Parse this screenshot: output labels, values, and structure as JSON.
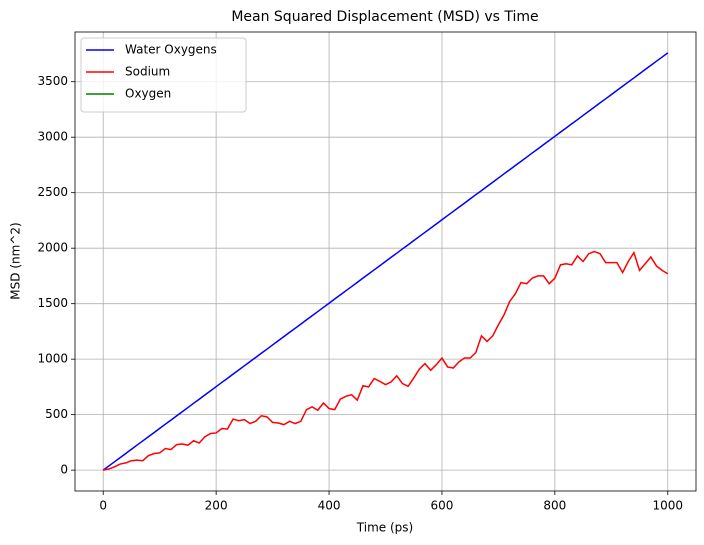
{
  "chart_data": {
    "type": "line",
    "title": "Mean Squared Displacement (MSD) vs Time",
    "x_label": "Time (ps)",
    "y_label": "MSD (nm^2)",
    "x": [
      0,
      10,
      20,
      30,
      40,
      50,
      60,
      70,
      80,
      90,
      100,
      110,
      120,
      130,
      140,
      150,
      160,
      170,
      180,
      190,
      200,
      210,
      220,
      230,
      240,
      250,
      260,
      270,
      280,
      290,
      300,
      310,
      320,
      330,
      340,
      350,
      360,
      370,
      380,
      390,
      400,
      410,
      420,
      430,
      440,
      450,
      460,
      470,
      480,
      490,
      500,
      510,
      520,
      530,
      540,
      550,
      560,
      570,
      580,
      590,
      600,
      610,
      620,
      630,
      640,
      650,
      660,
      670,
      680,
      690,
      700,
      710,
      720,
      730,
      740,
      750,
      760,
      770,
      780,
      790,
      800,
      810,
      820,
      830,
      840,
      850,
      860,
      870,
      880,
      890,
      900,
      910,
      920,
      930,
      940,
      950,
      960,
      970,
      980,
      990,
      1000
    ],
    "series": [
      {
        "name": "Water Oxygens",
        "color": "#0000ff",
        "values": [
          0,
          38,
          75,
          113,
          150,
          188,
          226,
          263,
          301,
          338,
          376,
          414,
          451,
          489,
          526,
          564,
          602,
          639,
          677,
          714,
          752,
          790,
          827,
          865,
          902,
          940,
          978,
          1015,
          1053,
          1090,
          1128,
          1166,
          1203,
          1241,
          1278,
          1316,
          1354,
          1391,
          1429,
          1466,
          1504,
          1542,
          1579,
          1617,
          1654,
          1692,
          1730,
          1767,
          1805,
          1842,
          1880,
          1918,
          1955,
          1993,
          2030,
          2068,
          2106,
          2143,
          2181,
          2218,
          2256,
          2294,
          2331,
          2369,
          2406,
          2444,
          2482,
          2519,
          2557,
          2594,
          2632,
          2670,
          2707,
          2745,
          2782,
          2820,
          2858,
          2895,
          2933,
          2970,
          3008,
          3046,
          3083,
          3121,
          3158,
          3196,
          3234,
          3271,
          3309,
          3346,
          3384,
          3422,
          3459,
          3497,
          3534,
          3572,
          3610,
          3647,
          3685,
          3722,
          3760
        ]
      },
      {
        "name": "Sodium",
        "color": "#ff0000",
        "values": [
          0,
          10,
          30,
          55,
          65,
          85,
          90,
          85,
          130,
          150,
          155,
          195,
          185,
          230,
          235,
          225,
          265,
          245,
          300,
          330,
          335,
          375,
          370,
          460,
          445,
          455,
          420,
          440,
          490,
          480,
          430,
          425,
          410,
          440,
          420,
          440,
          545,
          570,
          540,
          605,
          555,
          545,
          640,
          665,
          680,
          630,
          760,
          750,
          825,
          800,
          770,
          795,
          850,
          780,
          755,
          830,
          910,
          960,
          900,
          950,
          1010,
          930,
          920,
          975,
          1010,
          1010,
          1060,
          1210,
          1160,
          1210,
          1310,
          1400,
          1520,
          1590,
          1690,
          1680,
          1730,
          1750,
          1750,
          1680,
          1730,
          1850,
          1860,
          1850,
          1930,
          1880,
          1950,
          1970,
          1950,
          1870,
          1870,
          1870,
          1780,
          1880,
          1960,
          1800,
          1860,
          1920,
          1840,
          1800,
          1770
        ]
      },
      {
        "name": "Oxygen",
        "color": "#008000",
        "values": [
          null,
          null,
          null,
          null,
          null,
          null,
          null,
          null,
          null,
          null,
          null,
          null,
          null,
          null,
          null,
          null,
          null,
          null,
          null,
          null,
          null,
          null,
          null,
          null,
          null,
          null,
          null,
          null,
          null,
          null,
          null,
          null,
          null,
          null,
          null,
          null,
          null,
          null,
          null,
          null,
          null,
          null,
          null,
          null,
          null,
          null,
          null,
          null,
          null,
          null,
          null,
          null,
          null,
          null,
          null,
          null,
          null,
          null,
          null,
          null,
          null,
          null,
          null,
          null,
          null,
          null,
          null,
          null,
          null,
          null,
          null,
          null,
          null,
          null,
          null,
          null,
          null,
          null,
          null,
          null,
          null,
          null,
          null,
          null,
          null,
          null,
          null,
          null,
          null,
          null,
          null,
          null,
          null,
          null,
          null,
          null,
          null,
          null,
          null,
          null,
          null
        ]
      }
    ],
    "xlim": [
      -50,
      1050
    ],
    "ylim": [
      -188,
      3948
    ],
    "xticks": [
      0,
      200,
      400,
      600,
      800,
      1000
    ],
    "yticks": [
      0,
      500,
      1000,
      1500,
      2000,
      2500,
      3000,
      3500
    ],
    "grid": true,
    "legend": "upper left"
  }
}
